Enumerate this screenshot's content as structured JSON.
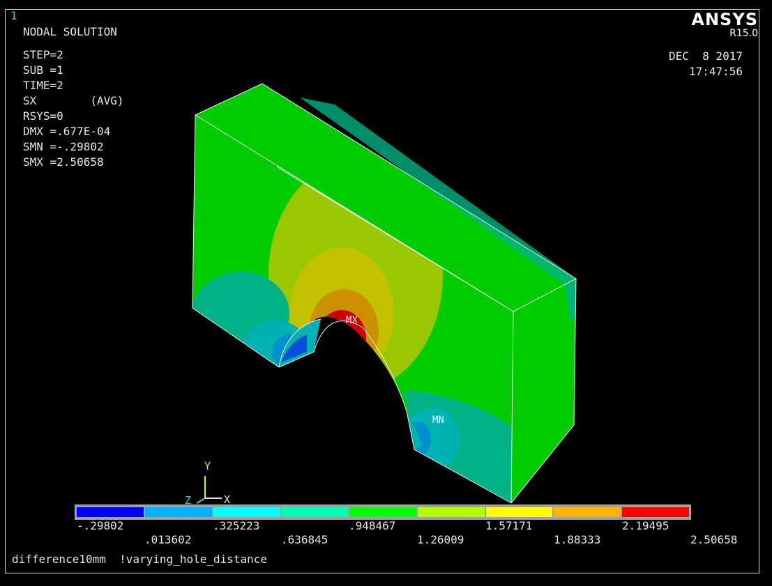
{
  "window": {
    "number": "1"
  },
  "header": {
    "title": "NODAL SOLUTION",
    "params": [
      "STEP=2",
      "SUB =1",
      "TIME=2",
      "SX        (AVG)",
      "RSYS=0",
      "DMX =.677E-04",
      "SMN =-.29802",
      "SMX =2.50658"
    ],
    "brand": "ANSYS",
    "version": "R15.0",
    "date": "DEC  8 2017",
    "time": "17:47:56"
  },
  "annotations": {
    "max_label": "MX",
    "min_label": "MN"
  },
  "triad": {
    "y": "Y",
    "z": "Z",
    "x": "X"
  },
  "legend": {
    "colors": [
      "#0000ff",
      "#00b2ff",
      "#00ffff",
      "#00ffb2",
      "#00ff00",
      "#b2ff00",
      "#ffff00",
      "#ffb200",
      "#ff0000"
    ],
    "values_top": [
      "-.29802",
      ".325223",
      ".948467",
      "1.57171",
      "2.19495"
    ],
    "values_bottom": [
      ".013602",
      ".636845",
      "1.26009",
      "1.88333",
      "2.50658"
    ]
  },
  "footer": {
    "title": "difference10mm  !varying_hole_distance"
  }
}
